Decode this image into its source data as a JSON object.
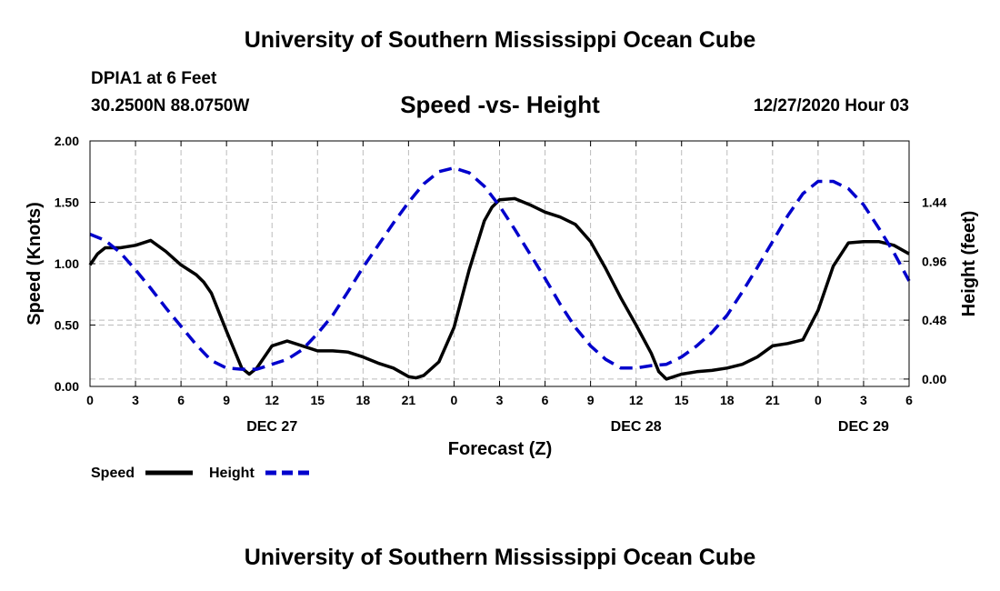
{
  "header": {
    "title": "University of Southern Mississippi Ocean Cube",
    "station": "DPIA1 at 6 Feet",
    "coordinates": "30.2500N 88.0750W",
    "chart_title": "Speed -vs- Height",
    "timestamp": "12/27/2020 Hour 03"
  },
  "footer": {
    "title": "University of Southern Mississippi Ocean Cube"
  },
  "colors": {
    "speed": "#000000",
    "height": "#0000cc",
    "grid": "#bbbbbb"
  },
  "chart_data": {
    "type": "line",
    "title": "Speed -vs- Height",
    "xlabel": "Forecast (Z)",
    "ylabel": "Speed (Knots)",
    "y2label": "Height (feet)",
    "xlim": [
      0,
      54
    ],
    "ylim": [
      0,
      2.0
    ],
    "y2lim": [
      -0.06,
      1.94
    ],
    "grid": true,
    "legend_position": "bottom-left",
    "x_ticks": [
      0,
      3,
      6,
      9,
      12,
      15,
      18,
      21,
      24,
      27,
      30,
      33,
      36,
      39,
      42,
      45,
      48,
      51,
      54
    ],
    "x_tick_labels": [
      "0",
      "3",
      "6",
      "9",
      "12",
      "15",
      "18",
      "21",
      "0",
      "3",
      "6",
      "9",
      "12",
      "15",
      "18",
      "21",
      "0",
      "3",
      "6"
    ],
    "y_ticks": [
      0,
      0.5,
      1.0,
      1.5,
      2.0
    ],
    "y_tick_labels": [
      "0.00",
      "0.50",
      "1.00",
      "1.50",
      "2.00"
    ],
    "y2_ticks": [
      0,
      0.48,
      0.96,
      1.44
    ],
    "y2_tick_labels": [
      "0.00",
      "0.48",
      "0.96",
      "1.44"
    ],
    "date_labels": [
      {
        "x": 12,
        "label": "DEC 27"
      },
      {
        "x": 36,
        "label": "DEC 28"
      },
      {
        "x": 51,
        "label": "DEC 29"
      }
    ],
    "series": [
      {
        "name": "Speed",
        "axis": "left",
        "style": "solid",
        "x": [
          0,
          0.5,
          1,
          1.5,
          2,
          3,
          4,
          5,
          6,
          7,
          7.5,
          8,
          9,
          10,
          10.5,
          11,
          12,
          13,
          14,
          15,
          16,
          17,
          18,
          19,
          20,
          21,
          21.5,
          22,
          23,
          24,
          25,
          26,
          26.5,
          27,
          28,
          29,
          30,
          31,
          32,
          33,
          34,
          35,
          36,
          37,
          37.5,
          38,
          39,
          40,
          41,
          42,
          43,
          44,
          45,
          46,
          47,
          48,
          49,
          50,
          51,
          52,
          53,
          54
        ],
        "values": [
          0.99,
          1.08,
          1.13,
          1.13,
          1.13,
          1.15,
          1.19,
          1.1,
          0.99,
          0.91,
          0.85,
          0.76,
          0.45,
          0.15,
          0.1,
          0.15,
          0.33,
          0.37,
          0.33,
          0.29,
          0.29,
          0.28,
          0.24,
          0.19,
          0.15,
          0.08,
          0.07,
          0.09,
          0.2,
          0.48,
          0.95,
          1.35,
          1.46,
          1.52,
          1.53,
          1.48,
          1.42,
          1.38,
          1.32,
          1.18,
          0.96,
          0.72,
          0.5,
          0.27,
          0.12,
          0.06,
          0.1,
          0.12,
          0.13,
          0.15,
          0.18,
          0.24,
          0.33,
          0.35,
          0.38,
          0.62,
          0.98,
          1.17,
          1.18,
          1.18,
          1.15,
          1.08
        ]
      },
      {
        "name": "Height",
        "axis": "right",
        "style": "dashed",
        "x": [
          0,
          1,
          2,
          3,
          4,
          5,
          6,
          7,
          8,
          9,
          10,
          11,
          12,
          13,
          14,
          15,
          16,
          17,
          18,
          19,
          20,
          21,
          22,
          23,
          24,
          25,
          26,
          27,
          28,
          29,
          30,
          31,
          32,
          33,
          34,
          35,
          36,
          37,
          38,
          39,
          40,
          41,
          42,
          43,
          44,
          45,
          46,
          47,
          48,
          49,
          50,
          51,
          52,
          53,
          54
        ],
        "values": [
          1.18,
          1.13,
          1.03,
          0.89,
          0.74,
          0.58,
          0.43,
          0.28,
          0.15,
          0.09,
          0.08,
          0.08,
          0.12,
          0.16,
          0.24,
          0.37,
          0.52,
          0.71,
          0.91,
          1.09,
          1.27,
          1.44,
          1.59,
          1.69,
          1.72,
          1.68,
          1.57,
          1.41,
          1.22,
          1.02,
          0.82,
          0.61,
          0.42,
          0.27,
          0.16,
          0.09,
          0.09,
          0.11,
          0.12,
          0.18,
          0.27,
          0.38,
          0.52,
          0.71,
          0.91,
          1.12,
          1.33,
          1.51,
          1.61,
          1.61,
          1.55,
          1.42,
          1.23,
          1.03,
          0.8
        ]
      }
    ]
  }
}
